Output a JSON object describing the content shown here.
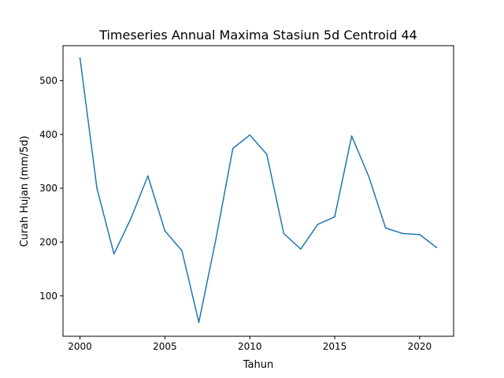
{
  "chart_data": {
    "type": "line",
    "title": "Timeseries Annual Maxima Stasiun 5d Centroid 44",
    "xlabel": "Tahun",
    "ylabel": "Curah Hujan (mm/5d)",
    "xlim": [
      1999,
      2022
    ],
    "ylim": [
      25,
      565
    ],
    "x_ticks": [
      2000,
      2005,
      2010,
      2015,
      2020
    ],
    "y_ticks": [
      100,
      200,
      300,
      400,
      500
    ],
    "grid": false,
    "line_color": "#1f77b4",
    "series": [
      {
        "x": [
          2000,
          2001,
          2002,
          2003,
          2004,
          2005,
          2006,
          2007,
          2008,
          2009,
          2010,
          2011,
          2012,
          2013,
          2014,
          2015,
          2016,
          2017,
          2018,
          2019,
          2020,
          2021
        ],
        "values": [
          542,
          300,
          178,
          244,
          323,
          221,
          184,
          51,
          205,
          374,
          399,
          363,
          216,
          187,
          233,
          247,
          397,
          322,
          226,
          216,
          214,
          190
        ]
      }
    ]
  }
}
